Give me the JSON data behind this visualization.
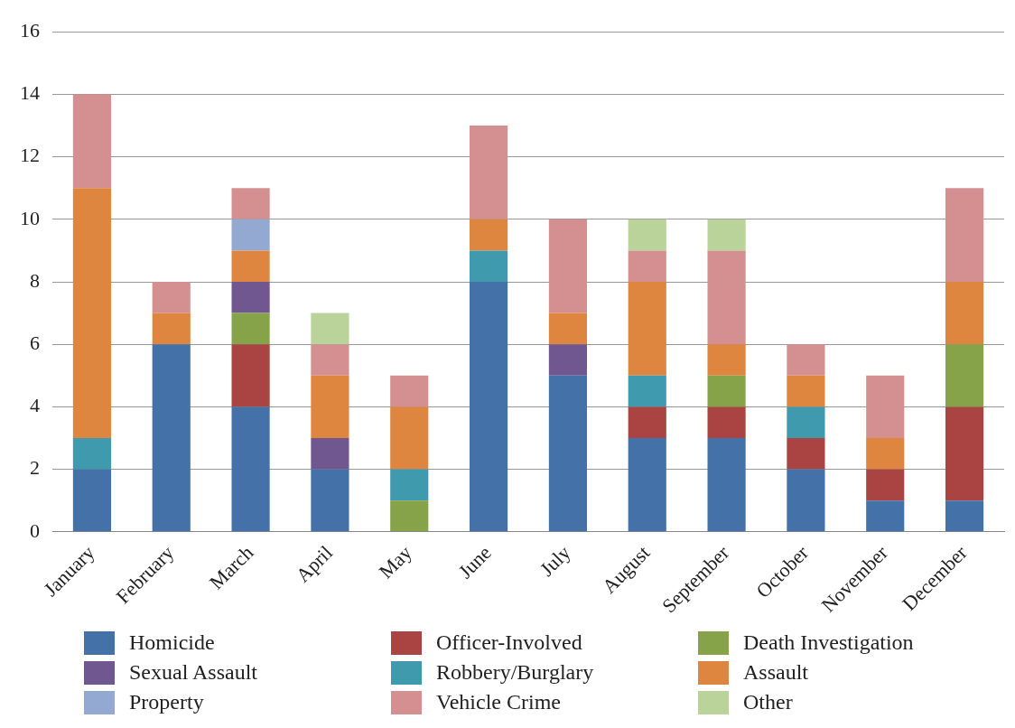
{
  "chart_data": {
    "type": "bar",
    "stacked": true,
    "categories": [
      "January",
      "February",
      "March",
      "April",
      "May",
      "June",
      "July",
      "August",
      "September",
      "October",
      "November",
      "December"
    ],
    "series": [
      {
        "name": "Homicide",
        "color": "#4472a8",
        "values": [
          2,
          6,
          4,
          2,
          0,
          8,
          5,
          3,
          3,
          2,
          1,
          1
        ]
      },
      {
        "name": "Officer-Involved",
        "color": "#a94442",
        "values": [
          0,
          0,
          2,
          0,
          0,
          0,
          0,
          1,
          1,
          1,
          1,
          3
        ]
      },
      {
        "name": "Death Investigation",
        "color": "#86a34a",
        "values": [
          0,
          0,
          1,
          0,
          1,
          0,
          0,
          0,
          1,
          0,
          0,
          2
        ]
      },
      {
        "name": "Sexual Assault",
        "color": "#70578f",
        "values": [
          0,
          0,
          1,
          1,
          0,
          0,
          1,
          0,
          0,
          0,
          0,
          0
        ]
      },
      {
        "name": "Robbery/Burglary",
        "color": "#3f9aae",
        "values": [
          1,
          0,
          0,
          0,
          1,
          1,
          0,
          1,
          0,
          1,
          0,
          0
        ]
      },
      {
        "name": "Assault",
        "color": "#de8640",
        "values": [
          8,
          1,
          1,
          2,
          2,
          1,
          1,
          3,
          1,
          1,
          1,
          2
        ]
      },
      {
        "name": "Property",
        "color": "#93a9d1",
        "values": [
          0,
          0,
          1,
          0,
          0,
          0,
          0,
          0,
          0,
          0,
          0,
          0
        ]
      },
      {
        "name": "Vehicle Crime",
        "color": "#d49090",
        "values": [
          3,
          1,
          1,
          1,
          1,
          3,
          3,
          1,
          3,
          1,
          2,
          3
        ]
      },
      {
        "name": "Other",
        "color": "#b9d39a",
        "values": [
          0,
          0,
          0,
          1,
          0,
          0,
          0,
          1,
          1,
          0,
          0,
          0
        ]
      }
    ],
    "ylim": [
      0,
      16
    ],
    "yticks": [
      0,
      2,
      4,
      6,
      8,
      10,
      12,
      14,
      16
    ],
    "grid": "y",
    "legend": "bottom"
  }
}
